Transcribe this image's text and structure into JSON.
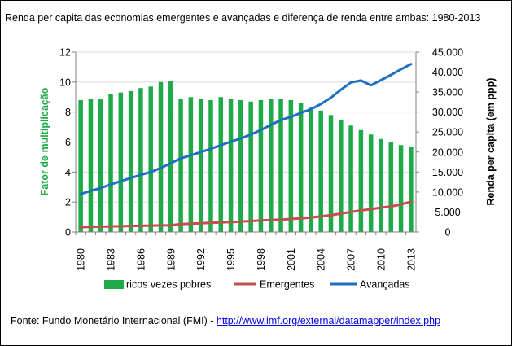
{
  "chart_data": {
    "type": "bar+line",
    "title": "Renda per capita das economias emergentes e avançadas e diferença de renda entre ambas: 1980-2013",
    "years": [
      1980,
      1981,
      1982,
      1983,
      1984,
      1985,
      1986,
      1987,
      1988,
      1989,
      1990,
      1991,
      1992,
      1993,
      1994,
      1995,
      1996,
      1997,
      1998,
      1999,
      2000,
      2001,
      2002,
      2003,
      2004,
      2005,
      2006,
      2007,
      2008,
      2009,
      2010,
      2011,
      2012,
      2013
    ],
    "x_tick_labels": [
      "1980",
      "1983",
      "1986",
      "1989",
      "1992",
      "1995",
      "1998",
      "2001",
      "2004",
      "2007",
      "2010",
      "2013"
    ],
    "y_left": {
      "label": "Fator de multiplicação",
      "min": 0,
      "max": 12,
      "ticks": [
        "0",
        "2",
        "4",
        "6",
        "8",
        "10",
        "12"
      ],
      "color": "#1faa4a"
    },
    "y_right": {
      "label": "Renda per capita (em ppp)",
      "min": 0,
      "max": 45000,
      "ticks": [
        "0",
        "5.000",
        "10.000",
        "15.000",
        "20.000",
        "25.000",
        "30.000",
        "35.000",
        "40.000",
        "45.000"
      ]
    },
    "series": [
      {
        "name": "ricos vezes pobres",
        "type": "bar",
        "axis": "left",
        "color": "#1faa4a",
        "values": [
          8.8,
          8.9,
          8.9,
          9.2,
          9.3,
          9.4,
          9.6,
          9.7,
          10.0,
          10.1,
          8.9,
          9.0,
          8.9,
          8.8,
          9.0,
          8.9,
          8.8,
          8.7,
          8.8,
          8.9,
          8.9,
          8.8,
          8.6,
          8.3,
          8.1,
          7.8,
          7.5,
          7.1,
          6.8,
          6.5,
          6.2,
          6.0,
          5.8,
          5.7
        ]
      },
      {
        "name": "Emergentes",
        "type": "line",
        "axis": "right",
        "color": "#c0504d",
        "values": [
          1200,
          1300,
          1350,
          1400,
          1450,
          1500,
          1550,
          1600,
          1650,
          1700,
          2000,
          2100,
          2200,
          2300,
          2400,
          2500,
          2600,
          2750,
          2900,
          3000,
          3100,
          3250,
          3400,
          3600,
          3900,
          4200,
          4600,
          5000,
          5400,
          5700,
          6100,
          6400,
          6900,
          7600
        ]
      },
      {
        "name": "Avançadas",
        "type": "line",
        "axis": "right",
        "color": "#1f6fc0",
        "values": [
          9500,
          10300,
          11000,
          11900,
          12700,
          13500,
          14300,
          15000,
          16000,
          17200,
          18400,
          19200,
          20000,
          20800,
          21700,
          22600,
          23400,
          24400,
          25500,
          26800,
          28000,
          28800,
          29800,
          30700,
          32000,
          33600,
          35600,
          37400,
          37900,
          36700,
          38000,
          39300,
          40700,
          42000
        ]
      }
    ]
  },
  "source": {
    "prefix": "Fonte: Fundo Monetário Internacional (FMI) - ",
    "link_text": "http://www.imf.org/external/datamapper/index.php"
  }
}
